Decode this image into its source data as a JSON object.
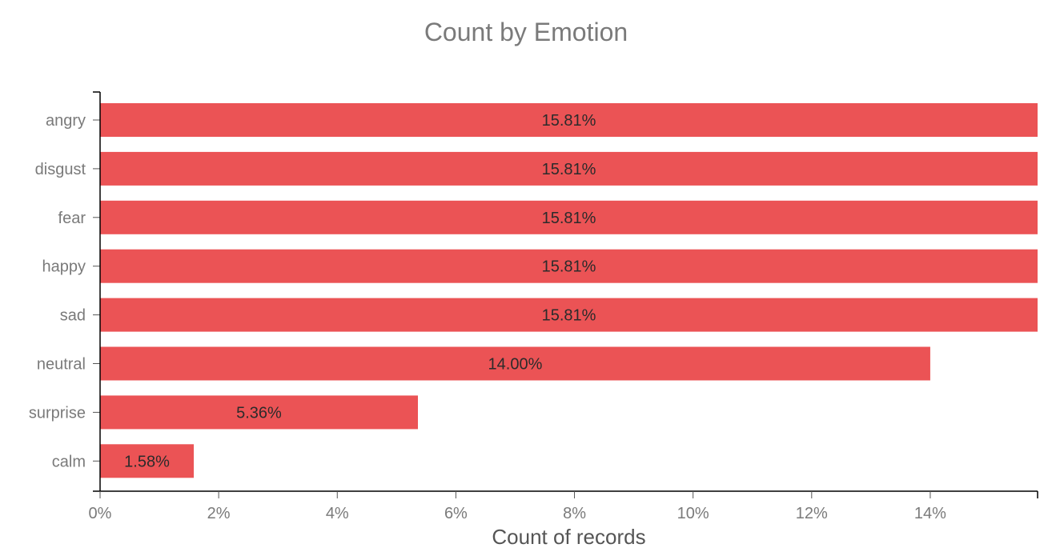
{
  "chart_data": {
    "type": "bar",
    "orientation": "horizontal",
    "title": "Count by Emotion",
    "xlabel": "Count of records",
    "ylabel": "",
    "categories": [
      "angry",
      "disgust",
      "fear",
      "happy",
      "sad",
      "neutral",
      "surprise",
      "calm"
    ],
    "values": [
      15.81,
      15.81,
      15.81,
      15.81,
      15.81,
      14.0,
      5.36,
      1.58
    ],
    "value_labels": [
      "15.81%",
      "15.81%",
      "15.81%",
      "15.81%",
      "15.81%",
      "14.00%",
      "5.36%",
      "1.58%"
    ],
    "xlim": [
      0,
      15.81
    ],
    "xticks": [
      0,
      2,
      4,
      6,
      8,
      10,
      12,
      14
    ],
    "xtick_labels": [
      "0%",
      "2%",
      "4%",
      "6%",
      "8%",
      "10%",
      "12%",
      "14%"
    ],
    "bar_color": "#eb5355",
    "grid": false,
    "legend": "none"
  }
}
